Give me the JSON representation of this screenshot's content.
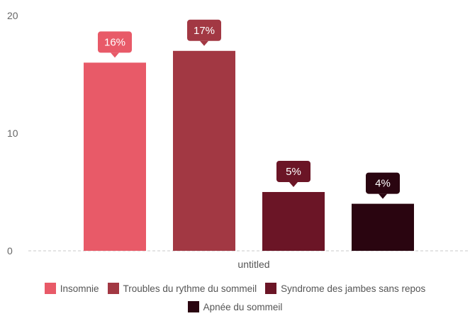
{
  "chart_data": {
    "type": "bar",
    "title": "",
    "xlabel": "",
    "ylabel": "",
    "categories": [
      "untitled"
    ],
    "ylim": [
      0,
      20
    ],
    "yticks": [
      0,
      10,
      20
    ],
    "grid": false,
    "legend_position": "bottom",
    "series": [
      {
        "name": "Insomnie",
        "value": 16,
        "label": "16%",
        "color": "#e85a68"
      },
      {
        "name": "Troubles du rythme du sommeil",
        "value": 17,
        "label": "17%",
        "color": "#a23843"
      },
      {
        "name": "Syndrome des jambes sans repos",
        "value": 5,
        "label": "5%",
        "color": "#6b1526"
      },
      {
        "name": "Apnée du sommeil",
        "value": 4,
        "label": "4%",
        "color": "#2a0510"
      }
    ]
  }
}
